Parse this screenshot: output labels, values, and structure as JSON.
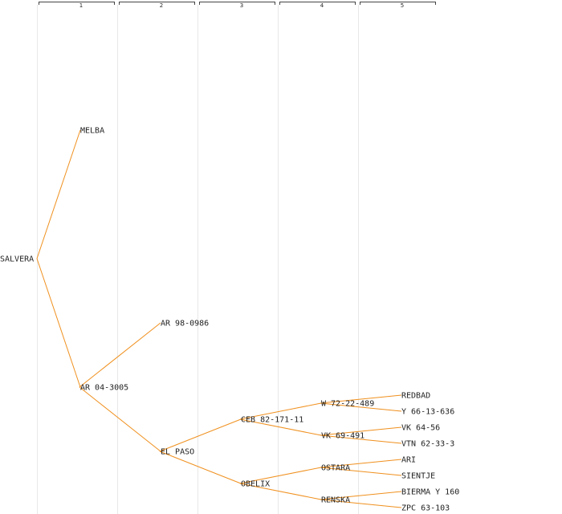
{
  "generations": [
    "1",
    "2",
    "3",
    "4",
    "5"
  ],
  "colors": {
    "edge": "#f0901e",
    "text": "#222222",
    "column_line": "#e8e8e8",
    "header_bracket": "#444444",
    "background": "#ffffff"
  },
  "tree": {
    "label": "SALVERA",
    "children": [
      {
        "label": "MELBA"
      },
      {
        "label": "AR 04-3005",
        "children": [
          {
            "label": "AR 98-0986"
          },
          {
            "label": "EL PASO",
            "children": [
              {
                "label": "CEB 82-171-11",
                "children": [
                  {
                    "label": "W 72-22-489",
                    "children": [
                      {
                        "label": "REDBAD"
                      },
                      {
                        "label": "Y 66-13-636"
                      }
                    ]
                  },
                  {
                    "label": "VK 69-491",
                    "children": [
                      {
                        "label": "VK 64-56"
                      },
                      {
                        "label": "VTN 62-33-3"
                      }
                    ]
                  }
                ]
              },
              {
                "label": "OBELIX",
                "children": [
                  {
                    "label": "OSTARA",
                    "children": [
                      {
                        "label": "ARI"
                      },
                      {
                        "label": "SIENTJE"
                      }
                    ]
                  },
                  {
                    "label": "RENSKA",
                    "children": [
                      {
                        "label": "BIERMA Y 160"
                      },
                      {
                        "label": "ZPC 63-103"
                      }
                    ]
                  }
                ]
              }
            ]
          }
        ]
      }
    ]
  }
}
